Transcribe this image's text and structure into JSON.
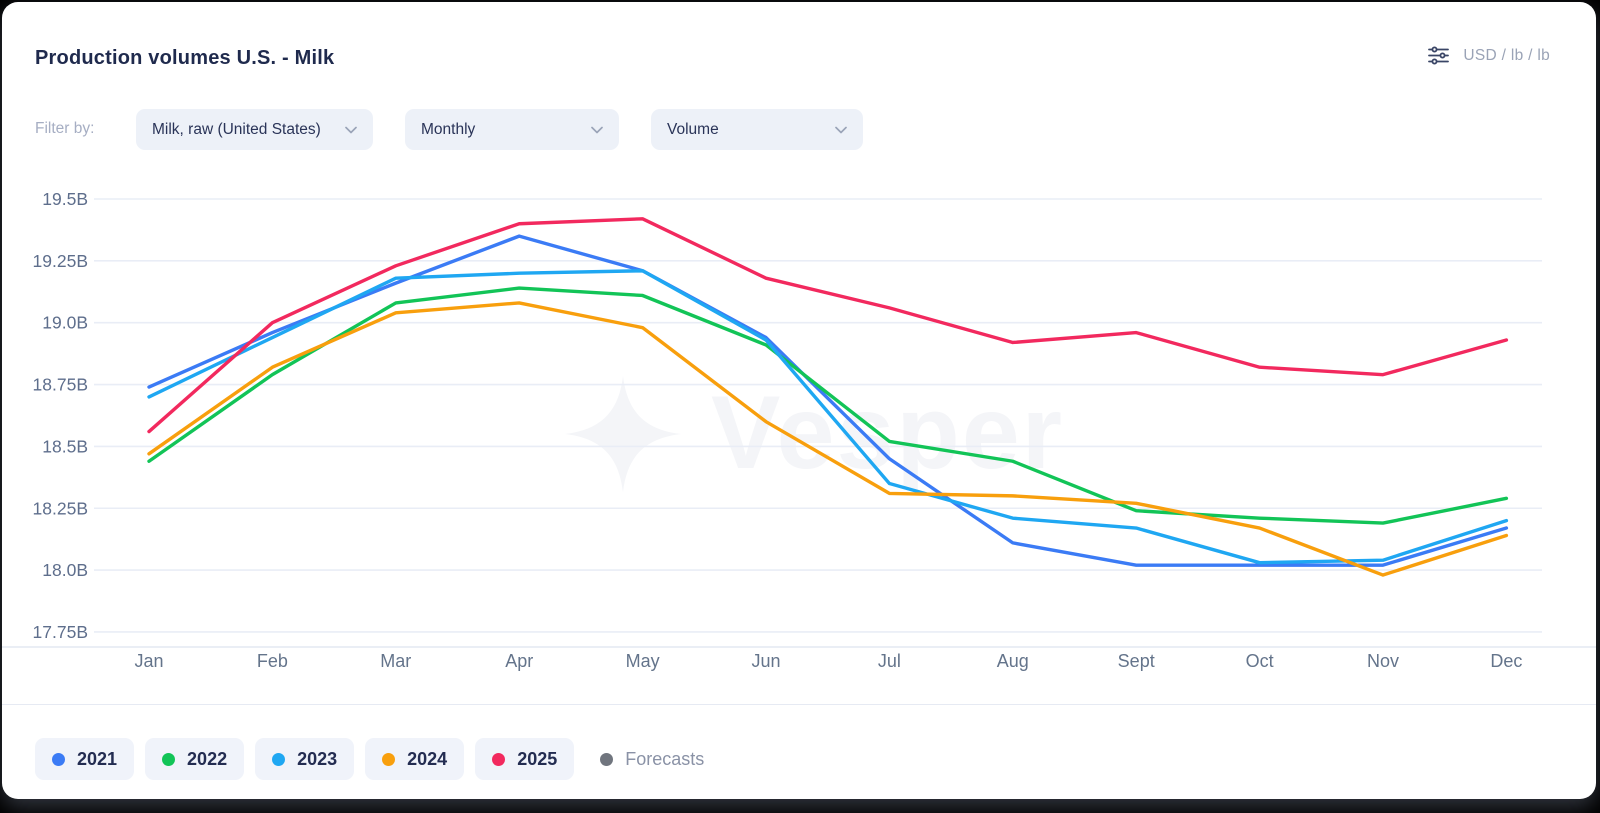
{
  "header": {
    "title": "Production volumes U.S. - Milk",
    "unit_label": "USD / lb / lb"
  },
  "filters": {
    "label": "Filter by:",
    "dropdowns": [
      {
        "value": "Milk, raw (United States)"
      },
      {
        "value": "Monthly"
      },
      {
        "value": "Volume"
      }
    ]
  },
  "watermark": "Vesper",
  "chart_data": {
    "type": "line",
    "title": "Production volumes U.S. - Milk",
    "categories": [
      "Jan",
      "Feb",
      "Mar",
      "Apr",
      "May",
      "Jun",
      "Jul",
      "Aug",
      "Sept",
      "Oct",
      "Nov",
      "Dec"
    ],
    "series": [
      {
        "name": "2021",
        "color": "#3B7BF5",
        "values": [
          18.74,
          18.96,
          19.16,
          19.35,
          19.21,
          18.94,
          18.45,
          18.11,
          18.02,
          18.02,
          18.02,
          18.17
        ]
      },
      {
        "name": "2022",
        "color": "#12C457",
        "values": [
          18.44,
          18.79,
          19.08,
          19.14,
          19.11,
          18.91,
          18.52,
          18.44,
          18.24,
          18.21,
          18.19,
          18.29
        ]
      },
      {
        "name": "2023",
        "color": "#1FA7F2",
        "values": [
          18.7,
          18.94,
          19.18,
          19.2,
          19.21,
          18.93,
          18.35,
          18.21,
          18.17,
          18.03,
          18.04,
          18.2
        ]
      },
      {
        "name": "2024",
        "color": "#F89F0D",
        "values": [
          18.47,
          18.82,
          19.04,
          19.08,
          18.98,
          18.6,
          18.31,
          18.3,
          18.27,
          18.17,
          17.98,
          18.14
        ]
      },
      {
        "name": "2025",
        "color": "#F2295E",
        "values": [
          18.56,
          19.0,
          19.23,
          19.4,
          19.42,
          19.18,
          19.06,
          18.92,
          18.96,
          18.82,
          18.79,
          18.93
        ]
      }
    ],
    "y_ticks": [
      {
        "value": 19.5,
        "label": "19.5B"
      },
      {
        "value": 19.25,
        "label": "19.25B"
      },
      {
        "value": 19.0,
        "label": "19.0B"
      },
      {
        "value": 18.75,
        "label": "18.75B"
      },
      {
        "value": 18.5,
        "label": "18.5B"
      },
      {
        "value": 18.25,
        "label": "18.25B"
      },
      {
        "value": 18.0,
        "label": "18.0B"
      },
      {
        "value": 17.75,
        "label": "17.75B"
      }
    ],
    "ylim": [
      17.75,
      19.5
    ],
    "xlabel": "",
    "ylabel": "",
    "grid": "horizontal",
    "legend_position": "bottom"
  },
  "legend": {
    "items": [
      {
        "label": "2021"
      },
      {
        "label": "2022"
      },
      {
        "label": "2023"
      },
      {
        "label": "2024"
      },
      {
        "label": "2025"
      }
    ],
    "forecasts_label": "Forecasts",
    "forecasts_color": "#70757E"
  }
}
